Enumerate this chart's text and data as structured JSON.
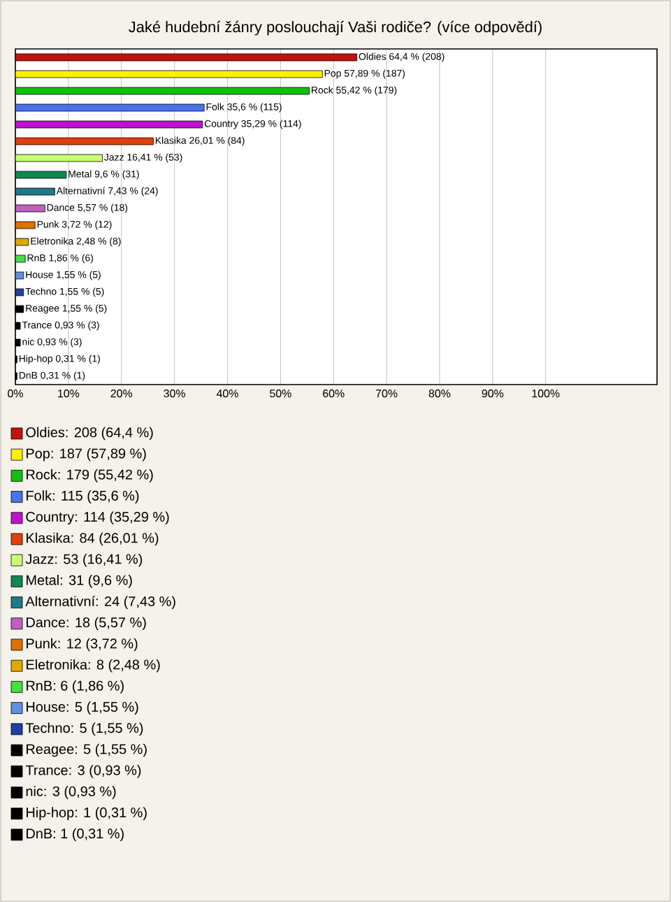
{
  "chart_data": {
    "type": "bar",
    "orientation": "horizontal",
    "title": "Jaké hudební žánry poslouchají Vaši rodiče? (více odpovědí)",
    "categories": [
      null,
      null,
      null,
      null,
      null,
      null,
      null,
      null,
      null,
      null,
      null,
      null,
      null,
      null,
      null,
      null,
      null,
      null,
      null,
      null
    ],
    "values": [
      64.4,
      57.89,
      55.42,
      35.6,
      35.29,
      26.01,
      16.41,
      9.6,
      7.43,
      5.57,
      3.72,
      2.48,
      1.86,
      1.55,
      1.55,
      1.55,
      0.93,
      0.93,
      0.31,
      0.31
    ],
    "value_labels": [
      "Oldies 64,4 % (208)",
      "Pop 57,89 % (187)",
      "Rock 55,42 % (179)",
      "Folk 35,6 % (115)",
      "Country 35,29 % (114)",
      "Klasika 26,01 % (84)",
      "Jazz 16,41 % (53)",
      "Metal 9,6 % (31)",
      "Alternativní 7,43 % (24)",
      "Dance 5,57 % (18)",
      "Punk 3,72 % (12)",
      "Eletronika 2,48 % (8)",
      "RnB 1,86 % (6)",
      "House 1,55 % (5)",
      "Techno 1,55 % (5)",
      "Reagee 1,55 % (5)",
      "Trance 0,93 % (3)",
      "nic 0,93 % (3)",
      "Hip-hop 0,31 % (1)",
      "DnB 0,31 % (1)"
    ],
    "colors": [
      "#c0140c",
      "#ffee00",
      "#10c010",
      "#4a70f0",
      "#c010d0",
      "#e04010",
      "#c8ff70",
      "#108850",
      "#207888",
      "#c060c0",
      "#e07000",
      "#e0a800",
      "#40e040",
      "#6090e0",
      "#2040a0",
      "#000000",
      "#000000",
      "#000000",
      "#000000",
      "#000000"
    ],
    "xlim": [
      0,
      121
    ],
    "xticks": [
      {
        "value": 0,
        "label": "0%"
      },
      {
        "value": 10,
        "label": "10%"
      },
      {
        "value": 20,
        "label": "20%"
      },
      {
        "value": 30,
        "label": "30%"
      },
      {
        "value": 40,
        "label": "40%"
      },
      {
        "value": 50,
        "label": "50%"
      },
      {
        "value": 60,
        "label": "60%"
      },
      {
        "value": 70,
        "label": "70%"
      },
      {
        "value": 80,
        "label": "80%"
      },
      {
        "value": 90,
        "label": "90%"
      },
      {
        "value": 100,
        "label": "100%"
      }
    ],
    "grid": "x",
    "annotations": [
      "Oldies: 208 (64,4 %)",
      "Pop: 187 (57,89 %)",
      "Rock: 179 (55,42 %)",
      "Folk: 115 (35,6 %)",
      "Country: 114 (35,29 %)",
      "Klasika: 84 (26,01 %)",
      "Jazz: 53 (16,41 %)",
      "Metal: 31 (9,6 %)",
      "Alternativní: 24 (7,43 %)",
      "Dance: 18 (5,57 %)",
      "Punk: 12 (3,72 %)",
      "Eletronika: 8 (2,48 %)",
      "RnB: 6 (1,86 %)",
      "House: 5 (1,55 %)",
      "Techno: 5 (1,55 %)",
      "Reagee: 5 (1,55 %)",
      "Trance: 3 (0,93 %)",
      "nic: 3 (0,93 %)",
      "Hip-hop: 1 (0,31 %)",
      "DnB: 1 (0,31 %)"
    ]
  }
}
